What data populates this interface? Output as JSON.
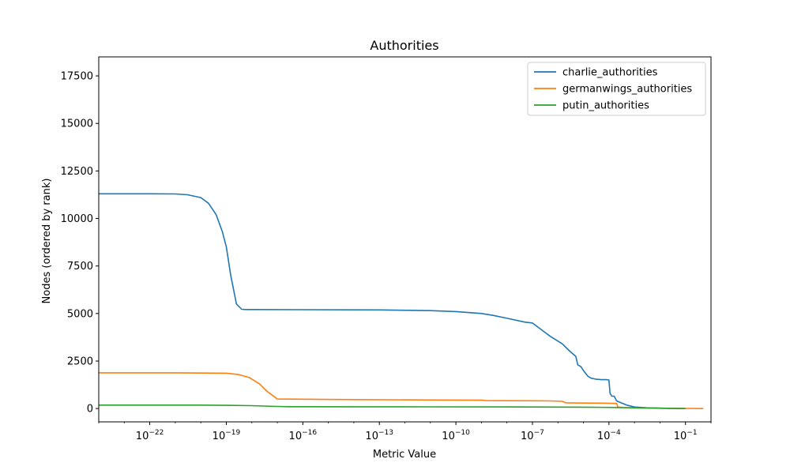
{
  "chart_data": {
    "type": "line",
    "title": "Authorities",
    "xlabel": "Metric Value",
    "ylabel": "Nodes (ordered by rank)",
    "xscale": "log",
    "xlim": [
      1e-24,
      1
    ],
    "ylim": [
      -700,
      18500
    ],
    "x_ticks": [
      1e-22,
      1e-19,
      1e-16,
      1e-13,
      1e-10,
      1e-07,
      0.0001,
      0.1
    ],
    "x_tick_labels": [
      {
        "base": "10",
        "exp": "−22"
      },
      {
        "base": "10",
        "exp": "−19"
      },
      {
        "base": "10",
        "exp": "−16"
      },
      {
        "base": "10",
        "exp": "−13"
      },
      {
        "base": "10",
        "exp": "−10"
      },
      {
        "base": "10",
        "exp": "−7"
      },
      {
        "base": "10",
        "exp": "−4"
      },
      {
        "base": "10",
        "exp": "−1"
      }
    ],
    "y_ticks": [
      0,
      2500,
      5000,
      7500,
      10000,
      12500,
      15000,
      17500
    ],
    "y_tick_labels": [
      "0",
      "2500",
      "5000",
      "7500",
      "10000",
      "12500",
      "15000",
      "17500"
    ],
    "grid": false,
    "legend": "top-right",
    "series": [
      {
        "name": "charlie_authorities",
        "color": "#1f77b4",
        "x": [
          1e-24,
          1e-22,
          1e-21,
          3e-21,
          1e-20,
          2e-20,
          4e-20,
          7e-20,
          1e-19,
          1.5e-19,
          2.5e-19,
          4e-19,
          6e-19,
          1e-18,
          1e-16,
          1e-13,
          1e-11,
          1e-10,
          1e-09,
          3e-09,
          1e-08,
          5e-08,
          1e-07,
          2e-07,
          5e-07,
          1.5e-06,
          3e-06,
          5e-06,
          6e-06,
          8e-06,
          1e-05,
          1.5e-05,
          2e-05,
          3e-05,
          5e-05,
          8e-05,
          0.0001,
          0.00011,
          0.00013,
          0.00016,
          0.0002,
          0.0003,
          0.0005,
          0.001,
          0.003,
          0.01,
          0.03,
          0.1
        ],
        "y": [
          11300,
          11300,
          11290,
          11250,
          11100,
          10800,
          10200,
          9300,
          8500,
          7000,
          5500,
          5220,
          5210,
          5210,
          5200,
          5190,
          5150,
          5100,
          5000,
          4900,
          4750,
          4550,
          4500,
          4200,
          3800,
          3400,
          3000,
          2750,
          2300,
          2200,
          2000,
          1700,
          1600,
          1550,
          1520,
          1520,
          1500,
          800,
          650,
          650,
          400,
          300,
          180,
          80,
          40,
          20,
          10,
          0
        ]
      },
      {
        "name": "germanwings_authorities",
        "color": "#ff7f0e",
        "x": [
          1e-24,
          1e-21,
          1e-20,
          1e-19,
          3e-19,
          8e-19,
          2e-18,
          4e-18,
          8e-18,
          1e-17,
          1e-14,
          1e-11,
          1e-09,
          1.5e-09,
          1e-07,
          5e-07,
          1.5e-06,
          2e-06,
          1e-05,
          0.0001,
          0.0002,
          0.00022,
          0.0004,
          0.001,
          0.01,
          0.1,
          0.5
        ],
        "y": [
          1880,
          1880,
          1870,
          1860,
          1790,
          1630,
          1300,
          900,
          600,
          500,
          470,
          450,
          440,
          420,
          410,
          400,
          380,
          300,
          290,
          280,
          270,
          80,
          50,
          30,
          15,
          5,
          0
        ]
      },
      {
        "name": "putin_authorities",
        "color": "#2ca02c",
        "x": [
          1e-24,
          1e-20,
          1e-19,
          1e-18,
          1e-17,
          3e-17,
          1e-14,
          1e-11,
          1e-08,
          1e-05,
          0.0001,
          0.001,
          0.01,
          0.1
        ],
        "y": [
          180,
          180,
          170,
          150,
          110,
          100,
          95,
          90,
          85,
          75,
          60,
          40,
          20,
          0
        ]
      }
    ]
  }
}
